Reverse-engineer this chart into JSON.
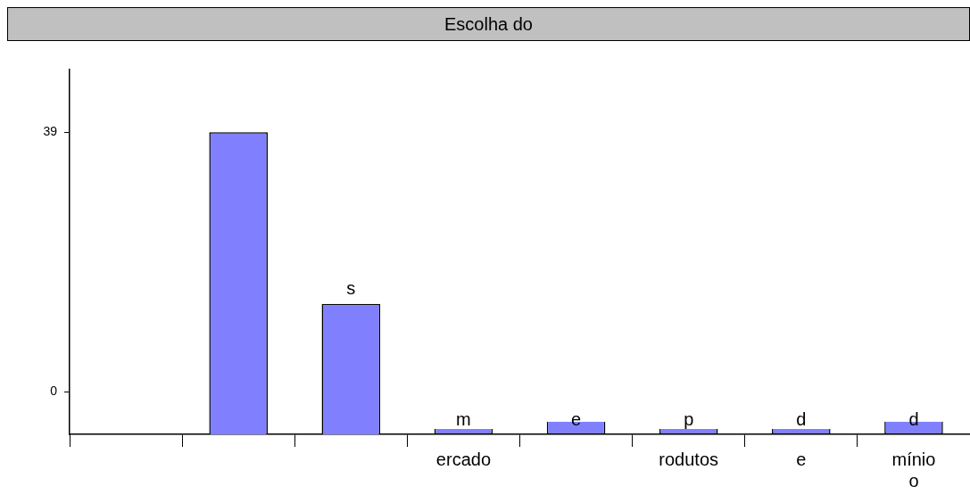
{
  "chart_data": {
    "type": "bar",
    "title": "Escolha do",
    "categories": [
      null,
      null,
      null,
      "ercado",
      null,
      "rodutos",
      "e",
      "mínio\no"
    ],
    "values": [
      null,
      45.4,
      19.6,
      0.8,
      1.9,
      0.8,
      0.8,
      1.9
    ],
    "base": [
      null,
      -6.4,
      -6.4,
      -6.4,
      -6.4,
      -6.4,
      -6.4,
      -6.4
    ],
    "value_labels": [
      null,
      null,
      "s",
      "m",
      "e",
      "p",
      "d",
      "d"
    ],
    "color": "#8080ff",
    "ylim": [
      -6.4,
      48.4
    ],
    "yticks": [
      0,
      39
    ],
    "grid": false,
    "legend": false
  }
}
